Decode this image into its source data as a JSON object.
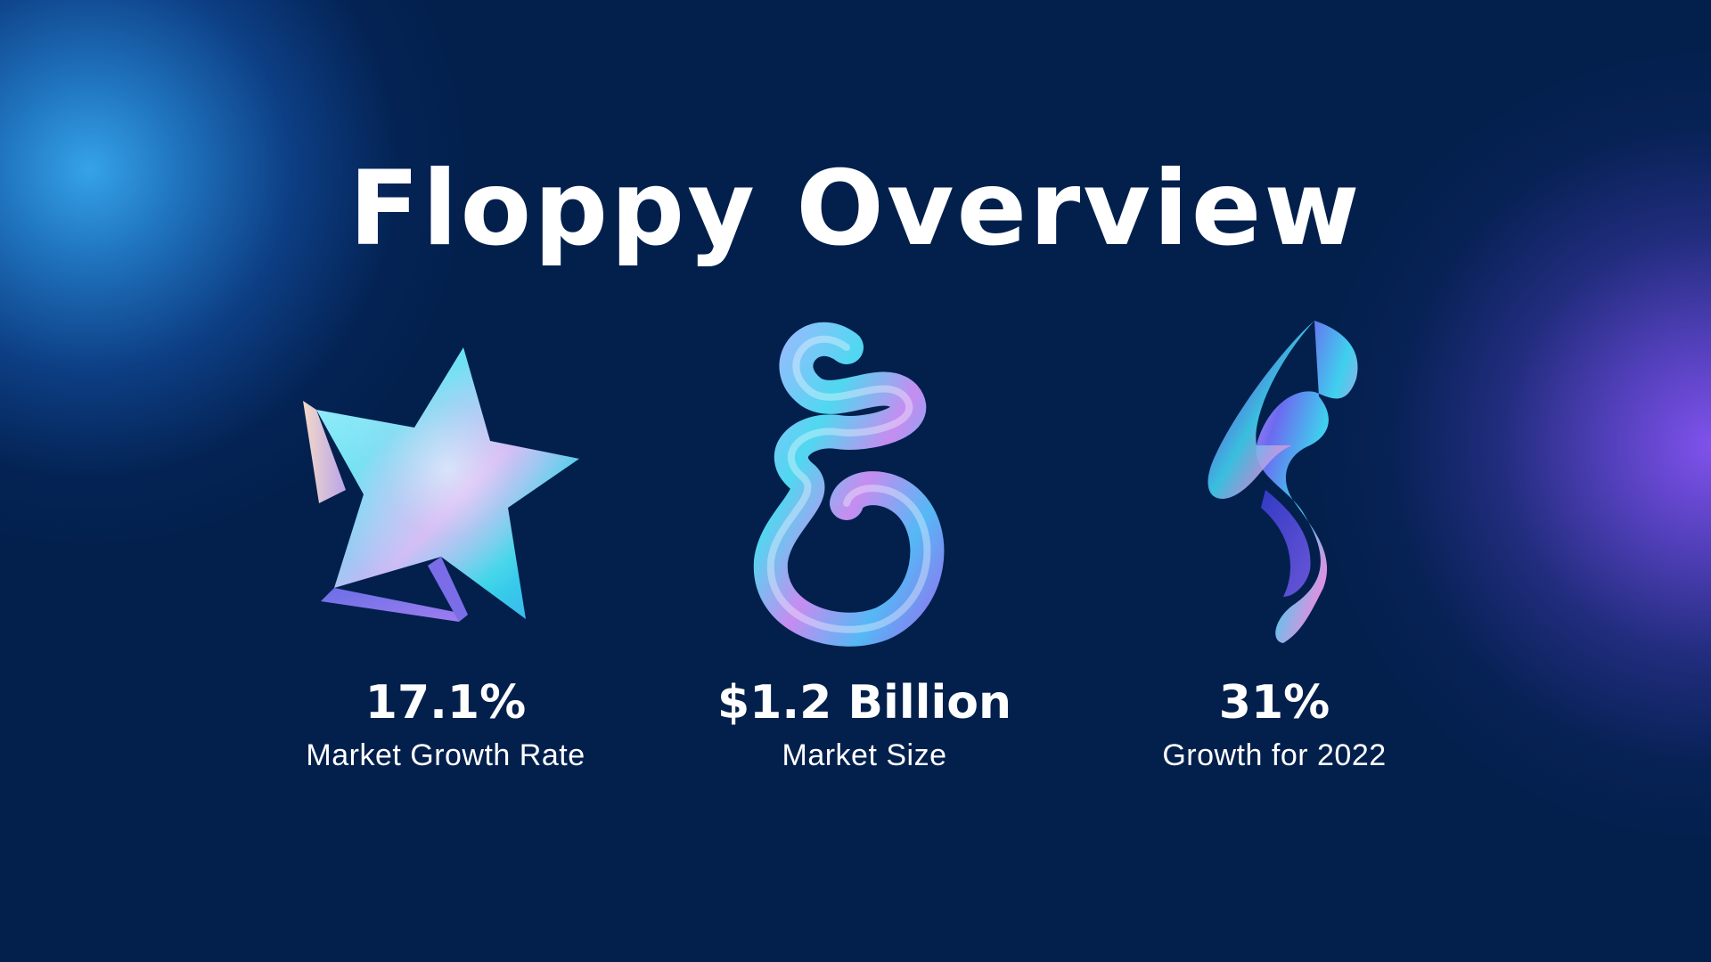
{
  "slide": {
    "title": "Floppy Overview",
    "background_color": "#03204d",
    "glow_colors": [
      "#38aaf0",
      "#8755f5"
    ]
  },
  "stats": [
    {
      "value": "17.1%",
      "label": "Market Growth Rate",
      "art_icon": "holographic-star-icon"
    },
    {
      "value": "$1.2 Billion",
      "label": "Market Size",
      "art_icon": "holographic-swirl-icon"
    },
    {
      "value": "31%",
      "label": "Growth for 2022",
      "art_icon": "holographic-ribbon-icon"
    }
  ]
}
